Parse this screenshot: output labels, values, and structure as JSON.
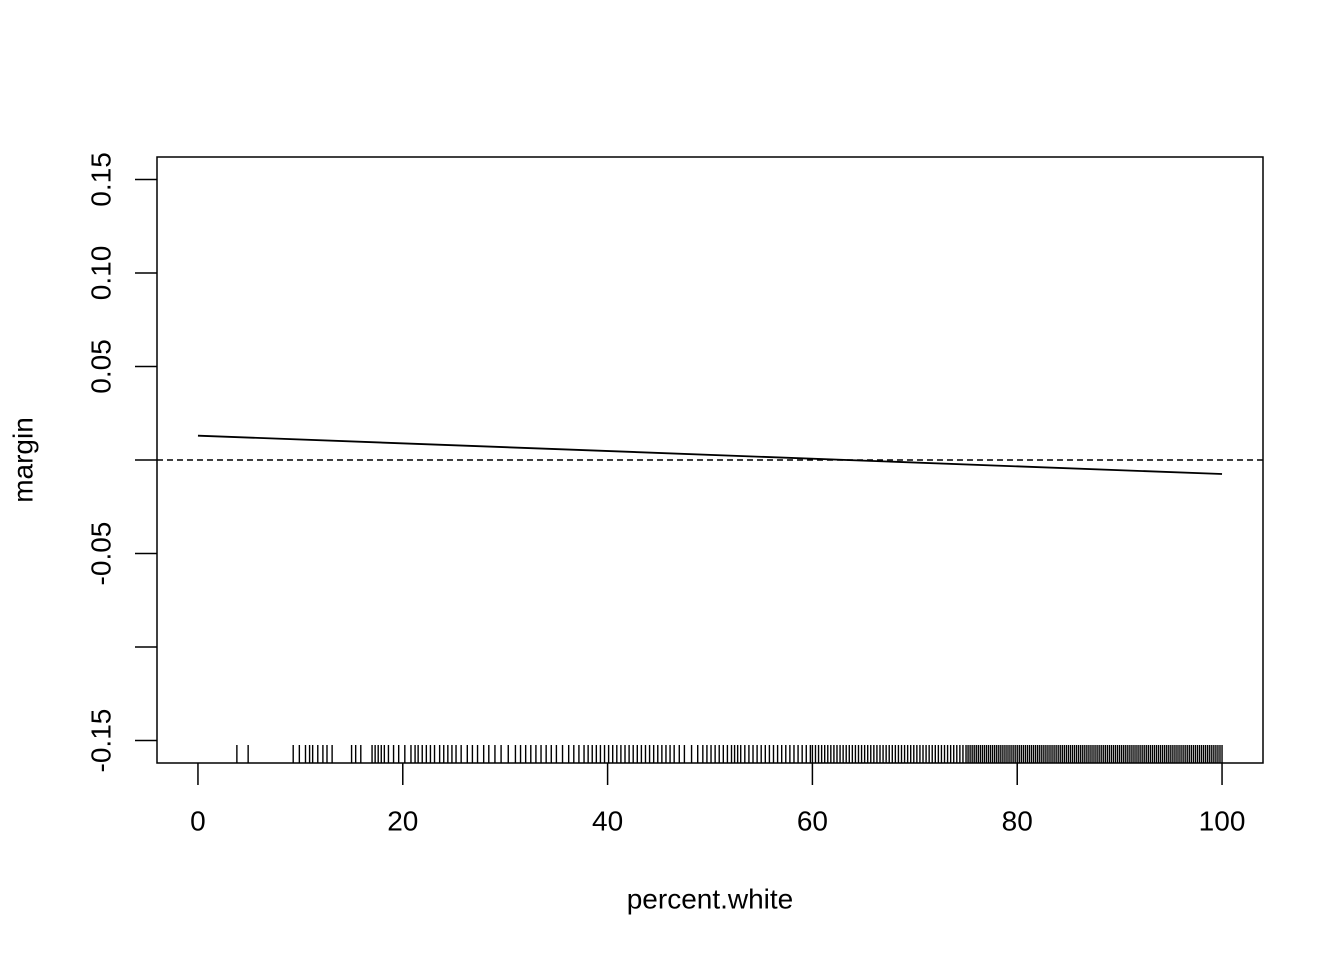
{
  "chart_data": {
    "type": "line",
    "x_label": "percent.white",
    "y_label": "margin",
    "x": [
      0,
      100
    ],
    "values": [
      0.013,
      -0.0075
    ],
    "color": "#000000",
    "hline": 0,
    "xlim": [
      -4,
      104
    ],
    "xticks": [
      0,
      20,
      40,
      60,
      80,
      100
    ],
    "ylim": [
      -0.162,
      0.162
    ],
    "yticks": [
      0.15,
      {
        "value": 0.1,
        "label": "0.10"
      },
      0.05,
      -0.05,
      -0.15
    ],
    "yticks_unlabeled": [
      0,
      -0.1
    ],
    "rug": [
      3.8,
      4.9,
      9.3,
      9.9,
      10.5,
      10.9,
      11.2,
      11.7,
      12.2,
      12.6,
      13.1,
      15.0,
      15.4,
      15.9,
      17.0,
      17.3,
      17.6,
      17.9,
      18.2,
      18.6,
      19.1,
      19.6,
      20.2,
      20.8,
      21.2,
      21.5,
      21.9,
      22.3,
      22.7,
      23.1,
      23.6,
      24.0,
      24.4,
      24.8,
      25.2,
      25.7,
      26.3,
      26.8,
      27.3,
      27.9,
      28.4,
      29.0,
      29.6,
      30.3,
      31.0,
      31.5,
      32.0,
      32.5,
      33.0,
      33.5,
      34.0,
      34.5,
      35.0,
      35.6,
      36.2,
      36.7,
      37.2,
      37.7,
      38.1,
      38.5,
      38.9,
      39.3,
      39.7,
      40.1,
      40.5,
      40.9,
      41.3,
      41.7,
      42.1,
      42.5,
      42.9,
      43.3,
      43.7,
      44.1,
      44.5,
      44.9,
      45.3,
      45.7,
      46.1,
      46.5,
      47.0,
      47.5,
      48.2,
      48.8,
      49.3,
      49.7,
      50.1,
      50.5,
      50.9,
      51.3,
      51.7,
      52.1,
      52.4,
      52.7,
      53.0,
      53.4,
      53.8,
      54.2,
      54.6,
      55.0,
      55.4,
      55.8,
      56.2,
      56.6,
      57.0,
      57.4,
      57.8,
      58.2,
      58.6,
      59.0,
      59.4,
      59.8,
      60.0,
      60.3,
      60.6,
      60.9,
      61.2,
      61.5,
      61.8,
      62.1,
      62.4,
      62.7,
      63.0,
      63.3,
      63.6,
      63.9,
      64.2,
      64.5,
      64.8,
      65.1,
      65.4,
      65.7,
      66.0,
      66.3,
      66.6,
      66.9,
      67.2,
      67.5,
      67.8,
      68.1,
      68.4,
      68.7,
      69.0,
      69.3,
      69.6,
      69.9,
      70.2,
      70.5,
      70.8,
      71.1,
      71.4,
      71.7,
      72.0,
      72.3,
      72.6,
      72.9,
      73.2,
      73.5,
      73.8,
      74.1,
      74.4,
      74.7,
      75.0,
      75.2,
      75.4,
      75.6,
      75.8,
      76.0,
      76.2,
      76.4,
      76.6,
      76.8,
      77.0,
      77.2,
      77.4,
      77.6,
      77.8,
      78.0,
      78.2,
      78.4,
      78.6,
      78.8,
      79.0,
      79.2,
      79.4,
      79.6,
      79.8,
      80.0,
      80.2,
      80.4,
      80.6,
      80.8,
      81.0,
      81.2,
      81.4,
      81.6,
      81.8,
      82.0,
      82.2,
      82.4,
      82.6,
      82.8,
      83.0,
      83.2,
      83.4,
      83.6,
      83.8,
      84.0,
      84.2,
      84.4,
      84.6,
      84.8,
      85.0,
      85.2,
      85.4,
      85.6,
      85.8,
      86.0,
      86.2,
      86.4,
      86.6,
      86.8,
      87.0,
      87.2,
      87.4,
      87.6,
      87.8,
      88.0,
      88.2,
      88.4,
      88.6,
      88.8,
      89.0,
      89.2,
      89.4,
      89.6,
      89.8,
      90.0,
      90.2,
      90.4,
      90.6,
      90.8,
      91.0,
      91.2,
      91.4,
      91.6,
      91.8,
      92.0,
      92.2,
      92.4,
      92.6,
      92.8,
      93.0,
      93.2,
      93.4,
      93.6,
      93.8,
      94.0,
      94.2,
      94.4,
      94.6,
      94.8,
      95.0,
      95.2,
      95.4,
      95.6,
      95.8,
      96.0,
      96.2,
      96.4,
      96.6,
      96.8,
      97.0,
      97.2,
      97.4,
      97.6,
      97.8,
      98.0,
      98.2,
      98.4,
      98.6,
      98.8,
      99.0,
      99.2,
      99.4,
      99.6,
      99.8,
      100.0
    ]
  }
}
